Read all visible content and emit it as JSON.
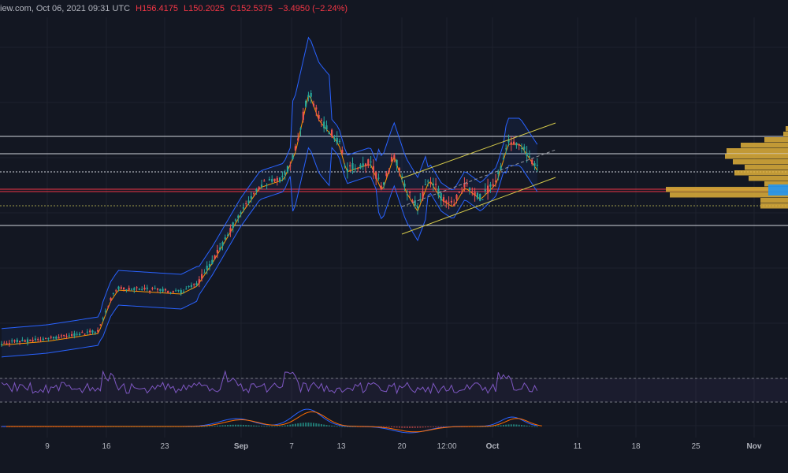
{
  "header": {
    "source_fragment": "iew.com, Oct 06, 2021 09:31 UTC",
    "high": "H156.4175",
    "low": "L150.2025",
    "close": "C152.5375",
    "change": "−3.4950 (−2.24%)"
  },
  "time_axis": [
    "9",
    "16",
    "23",
    "Sep",
    "7",
    "13",
    "20",
    "12:00",
    "Oct",
    "11",
    "18",
    "25",
    "Nov"
  ],
  "colors": {
    "background": "#131722",
    "bull": "#26a69a",
    "bear": "#ef5350",
    "band": "#2962ff",
    "ma": "#ff9800",
    "channel": "#d4c94a",
    "level_white": "#d1d4dc",
    "level_red": "#f23645",
    "vpvr": "#e0b03a",
    "vpvr_blue": "#2196f3",
    "rsi": "#7e57c2",
    "macd": "#2962ff",
    "signal": "#ff6d00"
  },
  "icons": {}
}
